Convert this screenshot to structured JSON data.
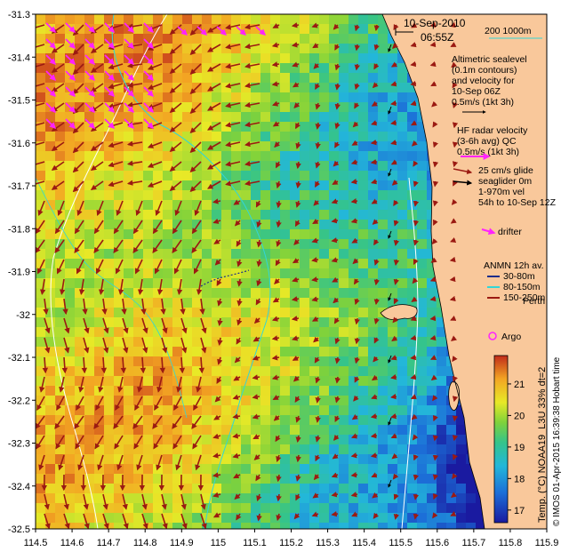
{
  "header": {
    "date": "10-Sep-2010",
    "time": "06:55Z"
  },
  "scale_bar": {
    "label": "200  1000m"
  },
  "legend": {
    "altimetry_lines": [
      "Altimetric sealevel",
      "(0.1m contours)",
      "and velocity for",
      "10-Sep 06Z",
      "0.5m/s (1kt 3h)"
    ],
    "hf_lines": [
      "HF radar velocity",
      "(3-6h avg) QC",
      "0.5m/s (1kt 3h)"
    ],
    "glider_lines": [
      "25 cm/s glide",
      "seaglider 0m",
      "1-970m vel",
      "54h to 10-Sep 12Z"
    ],
    "drifter": "drifter",
    "anmn_title": "ANMN 12h av.",
    "anmn_items": [
      "30-80m",
      "80-150m",
      "150-250m"
    ],
    "city": "Perth",
    "argo": "Argo"
  },
  "colorbar": {
    "label": "Temp. (°C) NOAA19_L3U 33% dt=2",
    "ticks": [
      "17",
      "18",
      "19",
      "20",
      "21"
    ],
    "vmin": 16.6,
    "vmax": 21.9
  },
  "credit": "© IMOS 01-Apr-2015 16:39:38 Hobart time",
  "axes": {
    "x_ticks": [
      "114.5",
      "114.6",
      "114.7",
      "114.8",
      "114.9",
      "115",
      "115.1",
      "115.2",
      "115.3",
      "115.4",
      "115.5",
      "115.6",
      "115.7",
      "115.8",
      "115.9"
    ],
    "y_ticks": [
      "-31.3",
      "-31.4",
      "-31.5",
      "-31.6",
      "-31.7",
      "-31.8",
      "-31.9",
      "-32",
      "-32.1",
      "-32.2",
      "-32.3",
      "-32.4",
      "-32.5"
    ],
    "xlim": [
      114.5,
      115.9
    ],
    "ylim": [
      -32.5,
      -31.3
    ]
  },
  "colors": {
    "land": "#f9c89b",
    "arrow_radar": "#9b1a12",
    "arrow_drifter": "#ff22ff",
    "contour_iso": "#33d6d6",
    "contour_white": "#ffffff"
  }
}
